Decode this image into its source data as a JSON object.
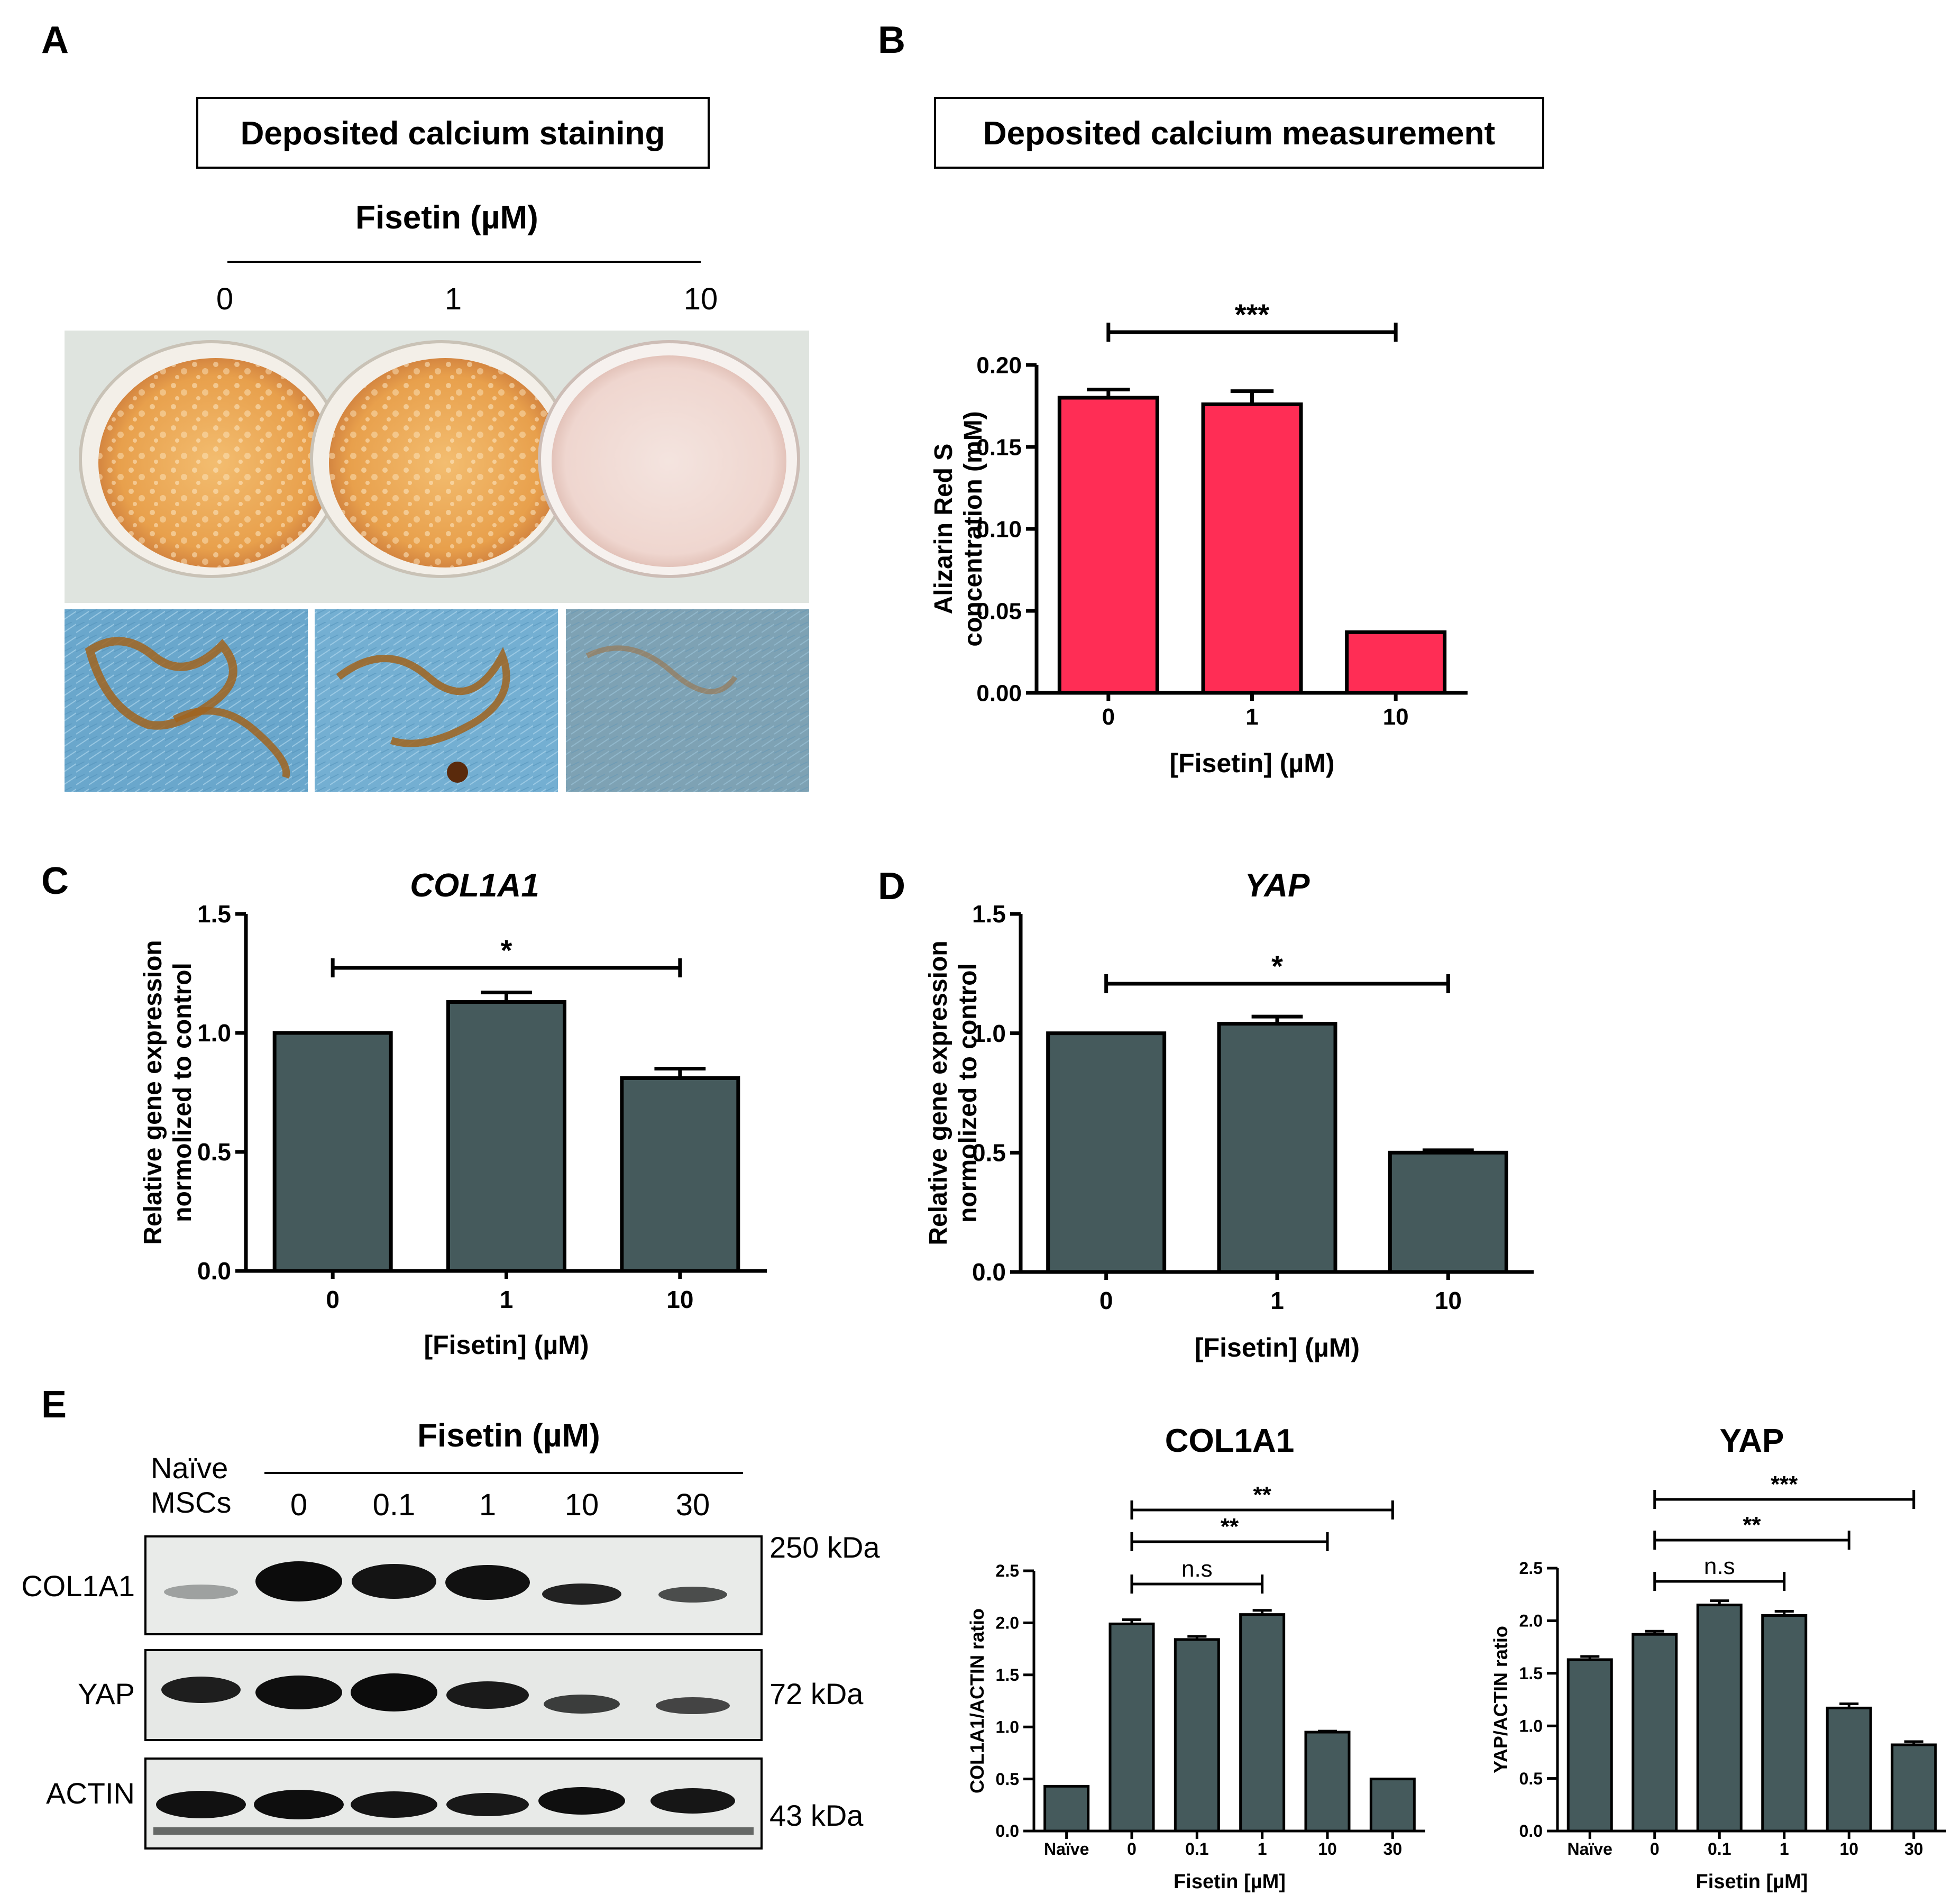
{
  "panel_labels": {
    "a": "A",
    "b": "B",
    "c": "C",
    "d": "D",
    "e": "E"
  },
  "panel_a": {
    "box_title": "Deposited calcium staining",
    "header": "Fisetin (µM)",
    "doses": [
      "0",
      "1",
      "10"
    ],
    "image_note": "Culture dishes stained orange (0, 1) and pale pink (10); microscopy insets of blue cells with brown deposits"
  },
  "panel_e_blot": {
    "header": "Fisetin (µM)",
    "naive_label": [
      "Naïve",
      "MSCs"
    ],
    "lanes": [
      "0",
      "0.1",
      "1",
      "10",
      "30"
    ],
    "rows": [
      {
        "name": "COL1A1",
        "mw": "250 kDa"
      },
      {
        "name": "YAP",
        "mw": "72 kDa"
      },
      {
        "name": "ACTIN",
        "mw": "43 kDa"
      }
    ]
  },
  "colors": {
    "red_bar": "#ff2d55",
    "gray_bar": "#455a5c",
    "dish_orange": "#e7a14f",
    "cell_blue": "#6ea9cc"
  },
  "chart_data": [
    {
      "id": "B",
      "type": "bar",
      "box_title": "Deposited calcium measurement",
      "title": "",
      "categories": [
        "0",
        "1",
        "10"
      ],
      "values": [
        0.18,
        0.176,
        0.037
      ],
      "errors": [
        0.005,
        0.008,
        0.0
      ],
      "ylabel": [
        "Alizarin Red S",
        "concentration (mM)"
      ],
      "xlabel": "[Fisetin] (µM)",
      "ylim": [
        0,
        0.2
      ],
      "yticks": [
        "0.00",
        "0.05",
        "0.10",
        "0.15",
        "0.20"
      ],
      "significance": [
        {
          "from": 0,
          "to": 2,
          "label": "***"
        }
      ]
    },
    {
      "id": "C",
      "type": "bar",
      "title": "COL1A1",
      "categories": [
        "0",
        "1",
        "10"
      ],
      "values": [
        1.0,
        1.13,
        0.81
      ],
      "errors": [
        0.0,
        0.04,
        0.04
      ],
      "ylabel": [
        "Relative gene expression",
        "normolized to control"
      ],
      "xlabel": "[Fisetin] (µM)",
      "ylim": [
        0,
        1.5
      ],
      "yticks": [
        "0.0",
        "0.5",
        "1.0",
        "1.5"
      ],
      "significance": [
        {
          "from": 0,
          "to": 2,
          "label": "*"
        }
      ]
    },
    {
      "id": "D",
      "type": "bar",
      "title": "YAP",
      "categories": [
        "0",
        "1",
        "10"
      ],
      "values": [
        1.0,
        1.04,
        0.5
      ],
      "errors": [
        0.0,
        0.03,
        0.01
      ],
      "ylabel": [
        "Relative gene expression",
        "normolized to control"
      ],
      "xlabel": "[Fisetin] (µM)",
      "ylim": [
        0,
        1.5
      ],
      "yticks": [
        "0.0",
        "0.5",
        "1.0",
        "1.5"
      ],
      "significance": [
        {
          "from": 0,
          "to": 2,
          "label": "*"
        }
      ]
    },
    {
      "id": "E1",
      "type": "bar",
      "title": "COL1A1",
      "categories": [
        "Naïve",
        "0",
        "0.1",
        "1",
        "10",
        "30"
      ],
      "values": [
        0.43,
        1.99,
        1.84,
        2.08,
        0.95,
        0.5
      ],
      "errors": [
        0.0,
        0.04,
        0.03,
        0.04,
        0.01,
        0.0
      ],
      "ylabel": [
        "COL1A1/ACTIN ratio"
      ],
      "xlabel": "Fisetin [µM]",
      "ylim": [
        0,
        2.5
      ],
      "yticks": [
        "0.0",
        "0.5",
        "1.0",
        "1.5",
        "2.0",
        "2.5"
      ],
      "significance": [
        {
          "from": 1,
          "to": 3,
          "label": "n.s"
        },
        {
          "from": 1,
          "to": 4,
          "label": "**"
        },
        {
          "from": 1,
          "to": 5,
          "label": "**"
        }
      ]
    },
    {
      "id": "E2",
      "type": "bar",
      "title": "YAP",
      "categories": [
        "Naïve",
        "0",
        "0.1",
        "1",
        "10",
        "30"
      ],
      "values": [
        1.63,
        1.87,
        2.15,
        2.05,
        1.17,
        0.82
      ],
      "errors": [
        0.03,
        0.03,
        0.04,
        0.04,
        0.04,
        0.03
      ],
      "ylabel": [
        "YAP/ACTIN ratio"
      ],
      "xlabel": "Fisetin [µM]",
      "ylim": [
        0,
        2.5
      ],
      "yticks": [
        "0.0",
        "0.5",
        "1.0",
        "1.5",
        "2.0",
        "2.5"
      ],
      "significance": [
        {
          "from": 1,
          "to": 3,
          "label": "n.s"
        },
        {
          "from": 1,
          "to": 4,
          "label": "**"
        },
        {
          "from": 1,
          "to": 5,
          "label": "***"
        }
      ]
    }
  ]
}
